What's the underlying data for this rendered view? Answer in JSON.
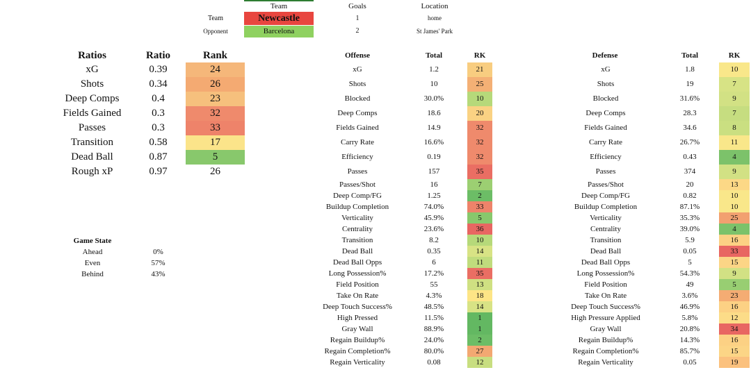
{
  "header": {
    "col_team": "Team",
    "col_goals": "Goals",
    "col_location": "Location",
    "team_label": "Team",
    "opponent_label": "Opponent",
    "team_name": "Newcastle",
    "team_color": "#e8463f",
    "opponent_name": "Barcelona",
    "opponent_color": "#8fd160",
    "team_goals": "1",
    "opponent_goals": "2",
    "team_location": "home",
    "opponent_location": "St James' Park"
  },
  "ratios": {
    "headers": [
      "Ratios",
      "Ratio",
      "Rank"
    ],
    "rows": [
      {
        "label": "xG",
        "ratio": "0.39",
        "rank": "24",
        "color": "#f5b77a"
      },
      {
        "label": "Shots",
        "ratio": "0.34",
        "rank": "26",
        "color": "#f4aa72"
      },
      {
        "label": "Deep Comps",
        "ratio": "0.4",
        "rank": "23",
        "color": "#f6c07d"
      },
      {
        "label": "Fields Gained",
        "ratio": "0.3",
        "rank": "32",
        "color": "#ef8a6c"
      },
      {
        "label": "Passes",
        "ratio": "0.3",
        "rank": "33",
        "color": "#ee836a"
      },
      {
        "label": "Transition",
        "ratio": "0.58",
        "rank": "17",
        "color": "#fbe48a"
      },
      {
        "label": "Dead Ball",
        "ratio": "0.87",
        "rank": "5",
        "color": "#88c86c"
      },
      {
        "label": "Rough xP",
        "ratio": "0.97",
        "rank": "26",
        "color": "#ffffff"
      }
    ]
  },
  "game_state": {
    "title": "Game State",
    "rows": [
      {
        "label": "Ahead",
        "value": "0%"
      },
      {
        "label": "Even",
        "value": "57%"
      },
      {
        "label": "Behind",
        "value": "43%"
      }
    ]
  },
  "offense": {
    "headers": [
      "Offense",
      "Total",
      "RK"
    ],
    "rows": [
      {
        "label": "xG",
        "total": "1.2",
        "rk": "21",
        "color": "#f8cd80"
      },
      {
        "label": "Shots",
        "total": "10",
        "rk": "25",
        "color": "#f4b075"
      },
      {
        "label": "Blocked",
        "total": "30.0%",
        "rk": "10",
        "color": "#b6d97a"
      },
      {
        "label": "Deep Comps",
        "total": "18.6",
        "rk": "20",
        "color": "#fad283"
      },
      {
        "label": "Fields Gained",
        "total": "14.9",
        "rk": "32",
        "color": "#ef8a6c"
      },
      {
        "label": "Carry Rate",
        "total": "16.6%",
        "rk": "32",
        "color": "#ef8a6c"
      },
      {
        "label": "Efficiency",
        "total": "0.19",
        "rk": "32",
        "color": "#ef8a6c"
      },
      {
        "label": "Passes",
        "total": "157",
        "rk": "35",
        "color": "#ea6e63"
      },
      {
        "label": "Passes/Shot",
        "total": "16",
        "rk": "7",
        "color": "#9ccf72"
      },
      {
        "label": "Deep Comp/FG",
        "total": "1.25",
        "rk": "2",
        "color": "#6cbd66"
      },
      {
        "label": "Buildup Completion",
        "total": "74.0%",
        "rk": "33",
        "color": "#ee836a"
      },
      {
        "label": "Verticality",
        "total": "45.9%",
        "rk": "5",
        "color": "#88c86c"
      },
      {
        "label": "Centrality",
        "total": "23.6%",
        "rk": "36",
        "color": "#e86662"
      },
      {
        "label": "Transition",
        "total": "8.2",
        "rk": "10",
        "color": "#b6d97a"
      },
      {
        "label": "Dead Ball",
        "total": "0.35",
        "rk": "14",
        "color": "#d8e385"
      },
      {
        "label": "Dead Ball Opps",
        "total": "6",
        "rk": "11",
        "color": "#c0dc7d"
      },
      {
        "label": "Long Possession%",
        "total": "17.2%",
        "rk": "35",
        "color": "#ea6e63"
      },
      {
        "label": "Field Position",
        "total": "55",
        "rk": "13",
        "color": "#cfe082"
      },
      {
        "label": "Take On Rate",
        "total": "4.3%",
        "rk": "18",
        "color": "#fde586"
      },
      {
        "label": "Deep Touch Success%",
        "total": "48.5%",
        "rk": "14",
        "color": "#d8e385"
      },
      {
        "label": "High Pressed",
        "total": "11.5%",
        "rk": "1",
        "color": "#63b862"
      },
      {
        "label": "Gray Wall",
        "total": "88.9%",
        "rk": "1",
        "color": "#63b862"
      },
      {
        "label": "Regain Buildup%",
        "total": "24.0%",
        "rk": "2",
        "color": "#6cbd66"
      },
      {
        "label": "Regain Completion%",
        "total": "80.0%",
        "rk": "27",
        "color": "#f3a872"
      },
      {
        "label": "Regain Verticality",
        "total": "0.08",
        "rk": "12",
        "color": "#c8de80"
      }
    ]
  },
  "defense": {
    "headers": [
      "Defense",
      "Total",
      "RK"
    ],
    "rows": [
      {
        "label": "xG",
        "total": "1.8",
        "rk": "10",
        "color": "#f9e78a"
      },
      {
        "label": "Shots",
        "total": "19",
        "rk": "7",
        "color": "#d7e385"
      },
      {
        "label": "Blocked",
        "total": "31.6%",
        "rk": "9",
        "color": "#d2e184"
      },
      {
        "label": "Deep Comps",
        "total": "28.3",
        "rk": "7",
        "color": "#c6dd80"
      },
      {
        "label": "Fields Gained",
        "total": "34.6",
        "rk": "8",
        "color": "#cadf81"
      },
      {
        "label": "Carry Rate",
        "total": "26.7%",
        "rk": "11",
        "color": "#f9e78a"
      },
      {
        "label": "Efficiency",
        "total": "0.43",
        "rk": "4",
        "color": "#7cc26a"
      },
      {
        "label": "Passes",
        "total": "374",
        "rk": "9",
        "color": "#d2e184"
      },
      {
        "label": "Passes/Shot",
        "total": "20",
        "rk": "13",
        "color": "#fcd886"
      },
      {
        "label": "Deep Comp/FG",
        "total": "0.82",
        "rk": "10",
        "color": "#f9e78a"
      },
      {
        "label": "Buildup Completion",
        "total": "87.1%",
        "rk": "10",
        "color": "#f9e78a"
      },
      {
        "label": "Verticality",
        "total": "35.3%",
        "rk": "25",
        "color": "#f2a070"
      },
      {
        "label": "Centrality",
        "total": "39.0%",
        "rk": "4",
        "color": "#7cc26a"
      },
      {
        "label": "Transition",
        "total": "5.9",
        "rk": "16",
        "color": "#fcd184"
      },
      {
        "label": "Dead Ball",
        "total": "0.05",
        "rk": "33",
        "color": "#e86662"
      },
      {
        "label": "Dead Ball Opps",
        "total": "5",
        "rk": "15",
        "color": "#fcd586"
      },
      {
        "label": "Long Possession%",
        "total": "54.3%",
        "rk": "9",
        "color": "#d2e184"
      },
      {
        "label": "Field Position",
        "total": "49",
        "rk": "5",
        "color": "#98ce72"
      },
      {
        "label": "Take On Rate",
        "total": "3.6%",
        "rk": "23",
        "color": "#f4ac73"
      },
      {
        "label": "Deep Touch Success%",
        "total": "46.9%",
        "rk": "16",
        "color": "#fcd184"
      },
      {
        "label": "High Pressure Applied",
        "total": "5.8%",
        "rk": "12",
        "color": "#fcdc88"
      },
      {
        "label": "Gray Wall",
        "total": "20.8%",
        "rk": "34",
        "color": "#e86662"
      },
      {
        "label": "Regain Buildup%",
        "total": "14.3%",
        "rk": "16",
        "color": "#fcd184"
      },
      {
        "label": "Regain Completion%",
        "total": "85.7%",
        "rk": "15",
        "color": "#fcd586"
      },
      {
        "label": "Regain Verticality",
        "total": "0.05",
        "rk": "19",
        "color": "#fbc17e"
      }
    ]
  }
}
